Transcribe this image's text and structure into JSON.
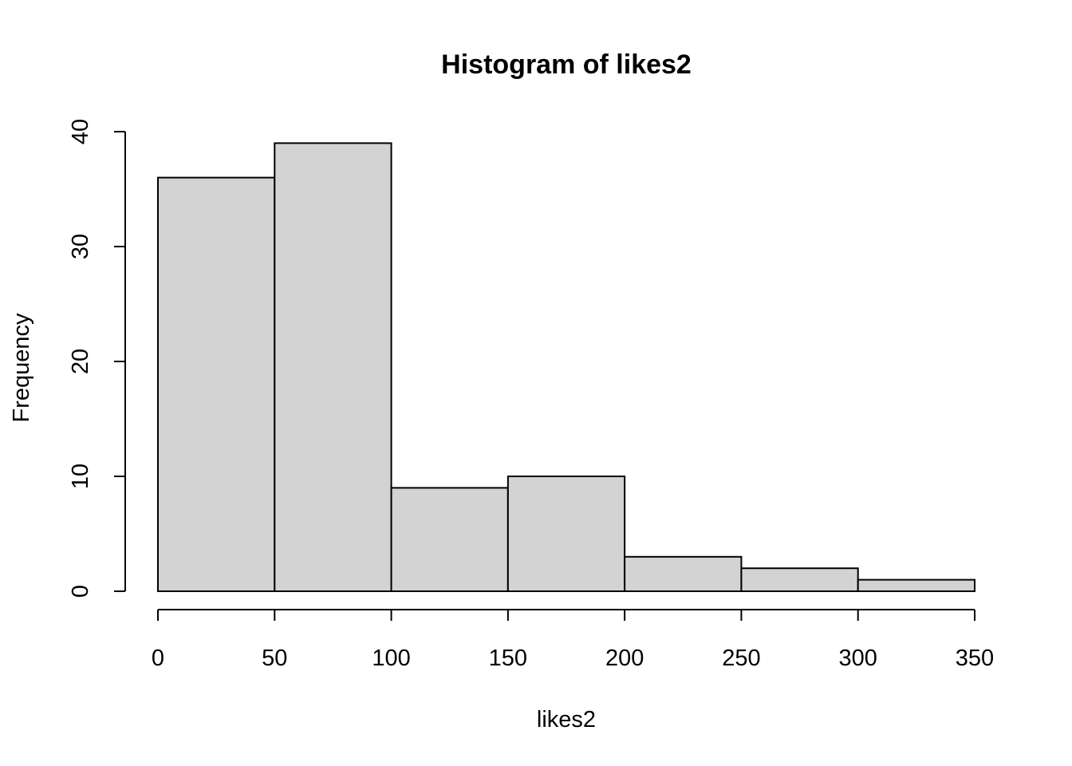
{
  "chart_data": {
    "type": "bar",
    "title": "Histogram of likes2",
    "xlabel": "likes2",
    "ylabel": "Frequency",
    "bins": [
      {
        "start": 0,
        "end": 50,
        "count": 36
      },
      {
        "start": 50,
        "end": 100,
        "count": 39
      },
      {
        "start": 100,
        "end": 150,
        "count": 9
      },
      {
        "start": 150,
        "end": 200,
        "count": 10
      },
      {
        "start": 200,
        "end": 250,
        "count": 3
      },
      {
        "start": 250,
        "end": 300,
        "count": 2
      },
      {
        "start": 300,
        "end": 350,
        "count": 1
      }
    ],
    "xlim": [
      0,
      350
    ],
    "ylim": [
      0,
      40
    ],
    "x_ticks": [
      0,
      50,
      100,
      150,
      200,
      250,
      300,
      350
    ],
    "y_ticks": [
      0,
      10,
      20,
      30,
      40
    ],
    "grid": false,
    "colors": {
      "bar_fill": "#d3d3d3",
      "bar_stroke": "#000000"
    }
  }
}
